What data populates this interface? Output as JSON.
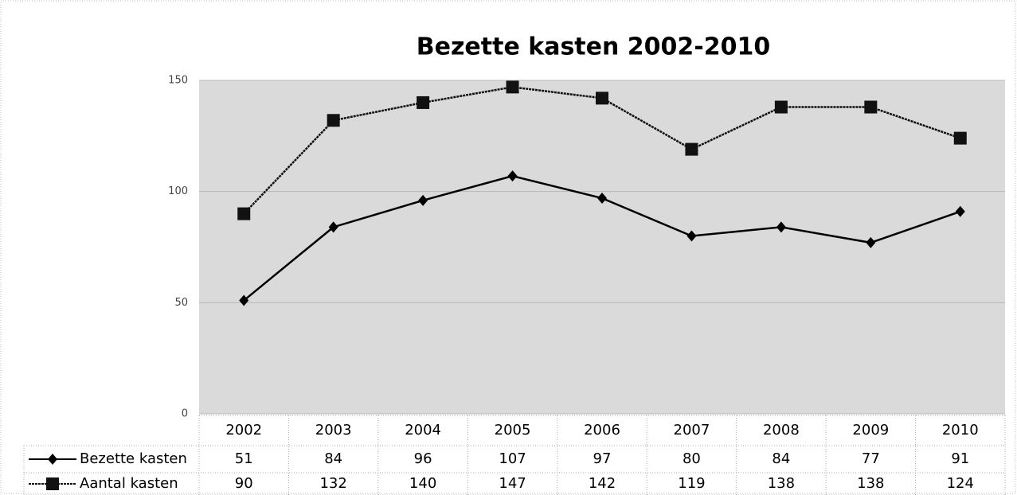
{
  "chart_data": {
    "type": "line",
    "title": "Bezette kasten 2002-2010",
    "categories": [
      "2002",
      "2003",
      "2004",
      "2005",
      "2006",
      "2007",
      "2008",
      "2009",
      "2010"
    ],
    "series": [
      {
        "name": "Bezette kasten",
        "color": "#000000",
        "marker": "diamond",
        "linestyle": "solid",
        "values": [
          51,
          84,
          96,
          107,
          97,
          80,
          84,
          77,
          91
        ]
      },
      {
        "name": "Aantal kasten",
        "color": "#111111",
        "marker": "square",
        "linestyle": "dotted",
        "values": [
          90,
          132,
          140,
          147,
          142,
          119,
          138,
          138,
          124
        ]
      }
    ],
    "ylim": [
      0,
      150
    ],
    "yticks": [
      0,
      50,
      100,
      150
    ],
    "grid": true,
    "data_table": true
  }
}
